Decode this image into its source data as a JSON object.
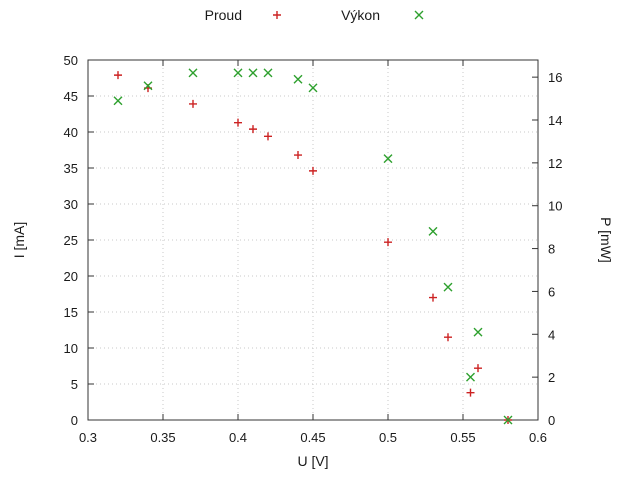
{
  "page": {
    "background": "#ffffff"
  },
  "chart_data": {
    "type": "scatter",
    "title": "",
    "xlabel": "U [V]",
    "ylabel_left": "I [mA]",
    "ylabel_right": "P [mW]",
    "xlim": [
      0.3,
      0.6
    ],
    "xticks": [
      0.3,
      0.35,
      0.4,
      0.45,
      0.5,
      0.55,
      0.6
    ],
    "ylim_left": [
      0,
      50
    ],
    "yticks_left": [
      0,
      5,
      10,
      15,
      20,
      25,
      30,
      35,
      40,
      45,
      50
    ],
    "ylim_right": [
      0,
      16.8
    ],
    "yticks_right": [
      0,
      2,
      4,
      6,
      8,
      10,
      12,
      14,
      16
    ],
    "grid": true,
    "legend_position": "top-center",
    "x": [
      0.32,
      0.34,
      0.37,
      0.4,
      0.41,
      0.42,
      0.44,
      0.45,
      0.5,
      0.53,
      0.54,
      0.555,
      0.56,
      0.58
    ],
    "series": [
      {
        "name": "Proud",
        "axis": "left",
        "marker": "plus",
        "color": "#cc2222",
        "values": [
          47.9,
          46.1,
          43.9,
          41.3,
          40.4,
          39.4,
          36.8,
          34.6,
          24.7,
          17.0,
          11.5,
          3.8,
          7.2,
          0.0
        ]
      },
      {
        "name": "Výkon",
        "axis": "right",
        "marker": "cross",
        "color": "#2ea02e",
        "values": [
          14.9,
          15.6,
          16.2,
          16.2,
          16.2,
          16.2,
          15.9,
          15.5,
          12.2,
          8.8,
          6.2,
          2.0,
          4.1,
          0.0
        ]
      }
    ],
    "colors": {
      "grid": "#c8c8c8",
      "border": "#333333",
      "text": "#1a1a1a"
    }
  }
}
